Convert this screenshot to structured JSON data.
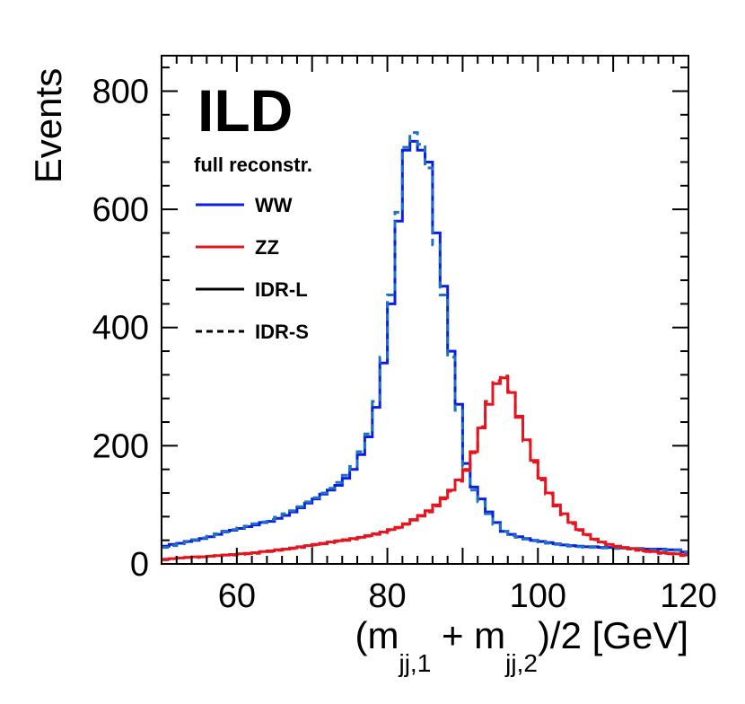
{
  "chart_data": {
    "type": "line",
    "title": "ILD",
    "subtitle": "full reconstr.",
    "xlabel": "(m_jj,1 + m_jj,2)/2 [GeV]",
    "xlabel_parts": {
      "open": "(m",
      "sub1": "jj,1",
      "mid": " + m",
      "sub2": "jj,2",
      "close": ")/2 [GeV]"
    },
    "ylabel": "Events",
    "xlim": [
      50,
      120
    ],
    "ylim": [
      0,
      860
    ],
    "x_ticks": [
      60,
      80,
      100,
      120
    ],
    "y_ticks": [
      0,
      200,
      400,
      600,
      800
    ],
    "bin_width": 1,
    "bin_start": 50,
    "legend": {
      "position": "top-left",
      "entries": [
        {
          "label": "WW",
          "style": "solid",
          "color": "#0a1ee6"
        },
        {
          "label": "ZZ",
          "style": "solid",
          "color": "#e6141e"
        },
        {
          "label": "IDR-L",
          "style": "solid",
          "color": "#000000"
        },
        {
          "label": "IDR-S",
          "style": "dashed",
          "color": "#000000"
        }
      ]
    },
    "series": [
      {
        "name": "WW IDR-L",
        "color": "#0a1ee6",
        "dashed": false,
        "values": [
          30,
          33,
          35,
          38,
          40,
          43,
          46,
          50,
          55,
          57,
          60,
          63,
          66,
          70,
          72,
          77,
          82,
          88,
          95,
          103,
          110,
          118,
          125,
          133,
          145,
          160,
          185,
          215,
          265,
          340,
          440,
          580,
          700,
          715,
          700,
          680,
          560,
          470,
          360,
          270,
          170,
          130,
          110,
          88,
          70,
          55,
          50,
          46,
          43,
          40,
          38,
          36,
          34,
          32,
          31,
          30,
          29,
          29,
          28,
          28,
          27,
          27,
          26,
          26,
          25,
          25,
          25,
          24,
          24,
          20
        ]
      },
      {
        "name": "WW IDR-S",
        "color": "#1e73be",
        "dashed": true,
        "values": [
          28,
          31,
          34,
          37,
          41,
          44,
          47,
          51,
          54,
          58,
          61,
          64,
          68,
          71,
          75,
          79,
          85,
          90,
          97,
          105,
          112,
          120,
          128,
          138,
          150,
          165,
          190,
          220,
          275,
          350,
          455,
          595,
          705,
          730,
          710,
          670,
          540,
          455,
          350,
          260,
          165,
          125,
          105,
          85,
          67,
          55,
          48,
          45,
          42,
          39,
          37,
          35,
          33,
          31,
          30,
          29,
          28,
          28,
          27,
          27,
          26,
          26,
          25,
          25,
          24,
          24,
          24,
          23,
          23,
          19
        ]
      },
      {
        "name": "ZZ IDR-L",
        "color": "#e6141e",
        "dashed": false,
        "values": [
          8,
          9,
          10,
          11,
          12,
          12,
          13,
          14,
          15,
          16,
          17,
          18,
          19,
          21,
          22,
          24,
          25,
          27,
          29,
          31,
          33,
          35,
          37,
          39,
          41,
          43,
          45,
          48,
          51,
          54,
          58,
          62,
          68,
          75,
          82,
          90,
          100,
          112,
          125,
          142,
          160,
          190,
          230,
          270,
          305,
          315,
          290,
          250,
          210,
          175,
          145,
          120,
          100,
          85,
          70,
          58,
          50,
          42,
          37,
          33,
          30,
          28,
          26,
          24,
          22,
          21,
          19,
          18,
          17,
          15
        ]
      },
      {
        "name": "ZZ IDR-S",
        "color": "#e6141e",
        "dashed": true,
        "values": [
          7,
          9,
          10,
          11,
          11,
          12,
          13,
          14,
          15,
          15,
          16,
          17,
          18,
          20,
          21,
          23,
          24,
          26,
          28,
          30,
          32,
          34,
          36,
          38,
          40,
          42,
          44,
          47,
          50,
          53,
          57,
          61,
          67,
          74,
          81,
          88,
          98,
          110,
          123,
          140,
          158,
          188,
          232,
          275,
          310,
          318,
          292,
          248,
          208,
          172,
          142,
          118,
          98,
          83,
          68,
          57,
          49,
          41,
          36,
          32,
          29,
          27,
          25,
          23,
          21,
          20,
          18,
          17,
          16,
          14
        ]
      }
    ]
  }
}
